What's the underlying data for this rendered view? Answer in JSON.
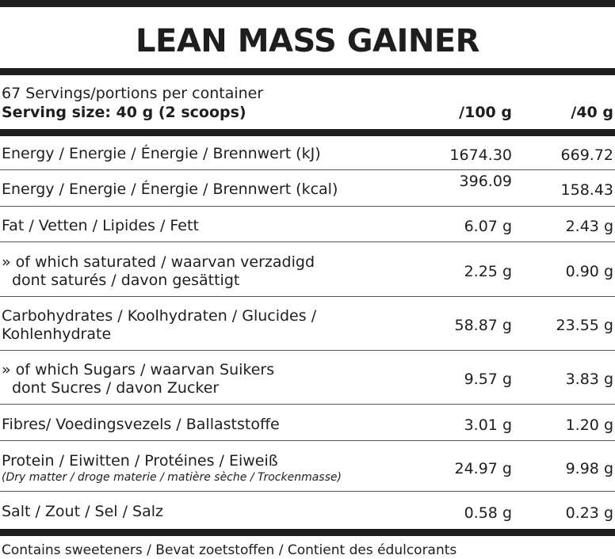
{
  "title": "LEAN MASS GAINER",
  "header": {
    "servings": "67 Servings/portions per container",
    "serving_size": "Serving size: 40 g (2 scoops)",
    "col_100": "/100 g",
    "col_40": "/40 g"
  },
  "rows": [
    {
      "label1": "Energy / Energie / Énergie / Brennwert (kJ)",
      "v100": "1674.30",
      "v40": "669.72"
    },
    {
      "label1": "Energy / Energie / Énergie / Brennwert (kcal)",
      "v100": "396.09",
      "v40": "158.43"
    },
    {
      "label1": "Fat / Vetten / Lipides / Fett",
      "v100": "6.07 g",
      "v40": "2.43 g"
    },
    {
      "label1": "» of which saturated / waarvan verzadigd",
      "label2": "dont saturés / davon gesättigt",
      "v100": "2.25 g",
      "v40": "0.90 g"
    },
    {
      "label1": "Carbohydrates / Koolhydraten / Glucides /",
      "label2": "Kohlenhydrate",
      "v100": "58.87 g",
      "v40": "23.55 g"
    },
    {
      "label1": "» of which Sugars / waarvan Suikers",
      "label2": "dont Sucres / davon Zucker",
      "v100": "9.57 g",
      "v40": "3.83 g"
    },
    {
      "label1": "Fibres/ Voedingsvezels / Ballaststoffe",
      "v100": "3.01 g",
      "v40": "1.20 g"
    },
    {
      "label1": "Protein / Eiwitten / Protéines / Eiweiß",
      "label2": "(Dry matter / droge materie / matière sèche / Trockenmasse)",
      "v100": "24.97 g",
      "v40": "9.98 g"
    },
    {
      "label1": "Salt / Zout / Sel / Salz",
      "v100": "0.58 g",
      "v40": "0.23 g"
    }
  ],
  "footer": "Contains sweeteners  / Bevat zoetstoffen / Contient des édulcorants"
}
